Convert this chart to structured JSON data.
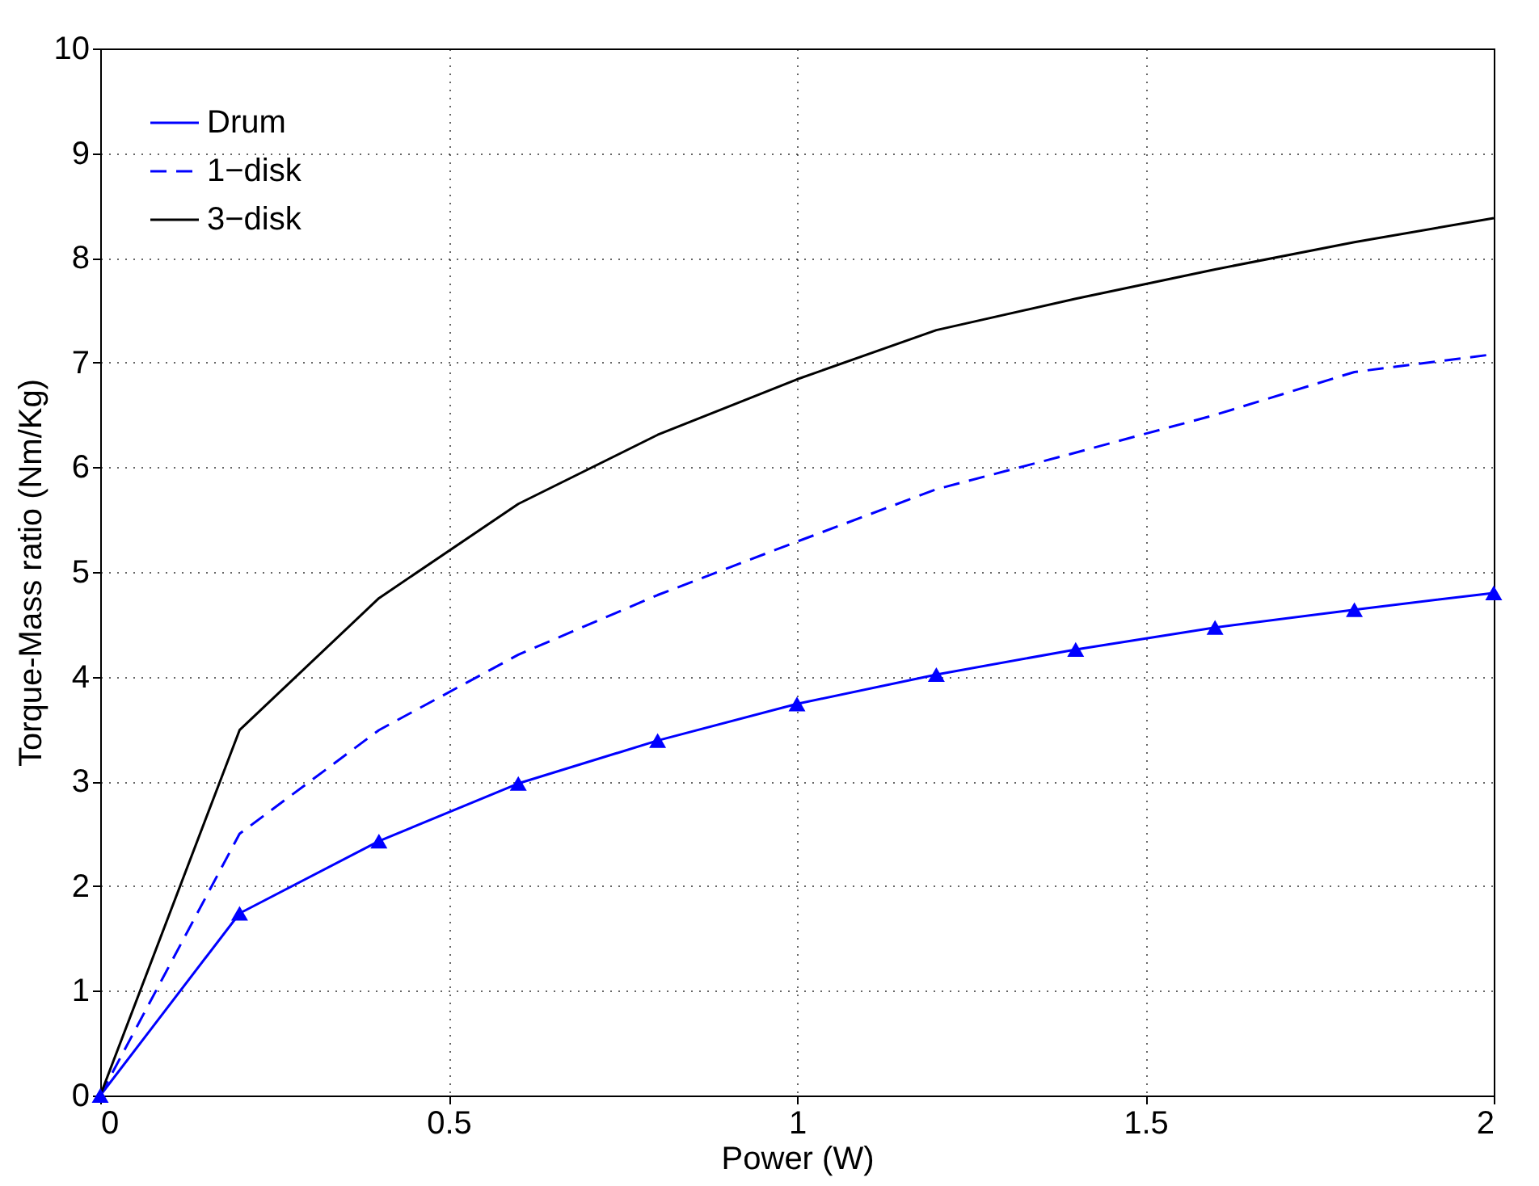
{
  "chart_data": {
    "type": "line",
    "xlabel": "Power (W)",
    "ylabel": "Torque-Mass ratio (Nm/Kg)",
    "x": [
      0,
      0.2,
      0.4,
      0.6,
      0.8,
      1.0,
      1.2,
      1.4,
      1.6,
      1.8,
      2.0
    ],
    "series": [
      {
        "name": "Drum",
        "color": "#0000ff",
        "marker": "triangle",
        "line_style": "solid",
        "values": [
          0,
          1.74,
          2.43,
          2.98,
          3.39,
          3.74,
          4.02,
          4.26,
          4.47,
          4.64,
          4.8
        ]
      },
      {
        "name": "1−disk",
        "color": "#0000ff",
        "marker": "none",
        "line_style": "dashed",
        "values": [
          0,
          2.5,
          3.49,
          4.21,
          4.78,
          5.29,
          5.79,
          6.14,
          6.5,
          6.91,
          7.08
        ]
      },
      {
        "name": "3−disk",
        "color": "#000000",
        "marker": "none",
        "line_style": "solid",
        "values": [
          0,
          3.49,
          4.75,
          5.65,
          6.31,
          6.84,
          7.31,
          7.61,
          7.89,
          8.15,
          8.38
        ]
      }
    ],
    "xlim": [
      0,
      2
    ],
    "xticks": [
      0,
      0.5,
      1,
      1.5,
      2
    ],
    "ylim": [
      0,
      10
    ],
    "yticks": [
      0,
      1,
      2,
      3,
      4,
      5,
      6,
      7,
      8,
      9,
      10
    ],
    "grid": true,
    "legend": "top left"
  }
}
